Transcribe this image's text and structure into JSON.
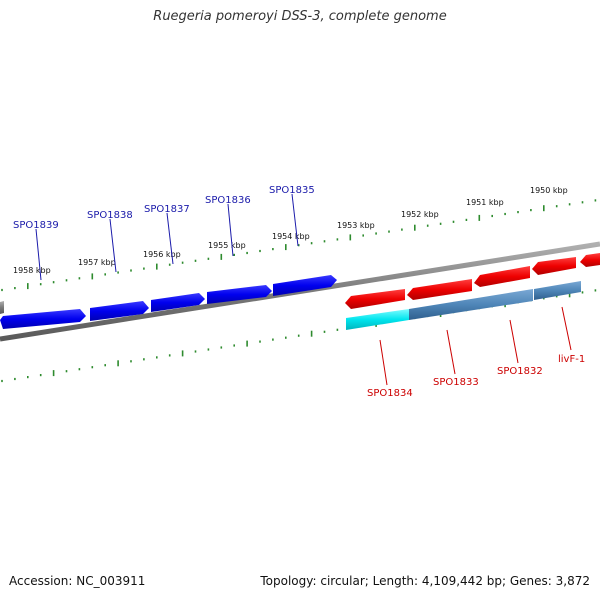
{
  "title": "Ruegeria pomeroyi DSS-3, complete genome",
  "footer": {
    "accession": "Accession: NC_003911",
    "topology": "Topology: circular; Length: 4,109,442 bp; Genes: 3,872"
  },
  "colors": {
    "forward_cds": "#0000ee",
    "reverse_cds": "#ee0000",
    "highlight_cds": "#00e5ee",
    "reverse_cds_alt": "#4f86b8",
    "backbone": "#808080",
    "ticks": "#2e8b2e",
    "forward_label": "#1a1aaa",
    "reverse_label": "#cc0000"
  },
  "scale_labels": [
    "1958 kbp",
    "1957 kbp",
    "1956 kbp",
    "1955 kbp",
    "1954 kbp",
    "1953 kbp",
    "1952 kbp",
    "1951 kbp",
    "1950 kbp"
  ],
  "forward_genes": [
    "SPO1839",
    "SPO1838",
    "SPO1837",
    "SPO1836",
    "SPO1835"
  ],
  "reverse_genes": [
    "SPO1834",
    "SPO1833",
    "SPO1832",
    "livF-1"
  ]
}
